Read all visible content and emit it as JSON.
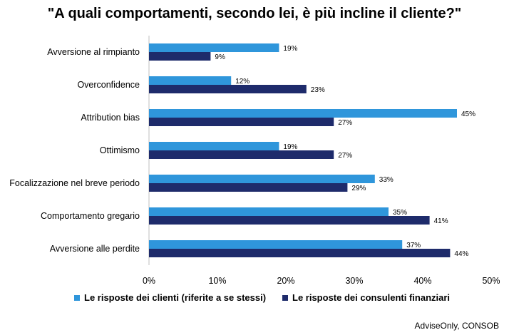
{
  "chart_data": {
    "type": "bar",
    "orientation": "horizontal",
    "title": "\"A quali comportamenti, secondo lei, è più incline il cliente?\"",
    "categories": [
      "Avversione al rimpianto",
      "Overconfidence",
      "Attribution bias",
      "Ottimismo",
      "Focalizzazione nel breve periodo",
      "Comportamento gregario",
      "Avversione alle perdite"
    ],
    "series": [
      {
        "name": "Le risposte dei clienti (riferite a se stessi)",
        "color": "#2f96db",
        "values": [
          19,
          12,
          45,
          19,
          33,
          35,
          37
        ]
      },
      {
        "name": "Le risposte dei consulenti finanziari",
        "color": "#1e2b6b",
        "values": [
          9,
          23,
          27,
          27,
          29,
          41,
          44
        ]
      }
    ],
    "xlim": [
      0,
      50
    ],
    "x_ticks": [
      "0%",
      "10%",
      "20%",
      "30%",
      "40%",
      "50%"
    ],
    "value_suffix": "%",
    "grid": false,
    "legend_position": "bottom"
  },
  "source": "AdviseOnly, CONSOB"
}
